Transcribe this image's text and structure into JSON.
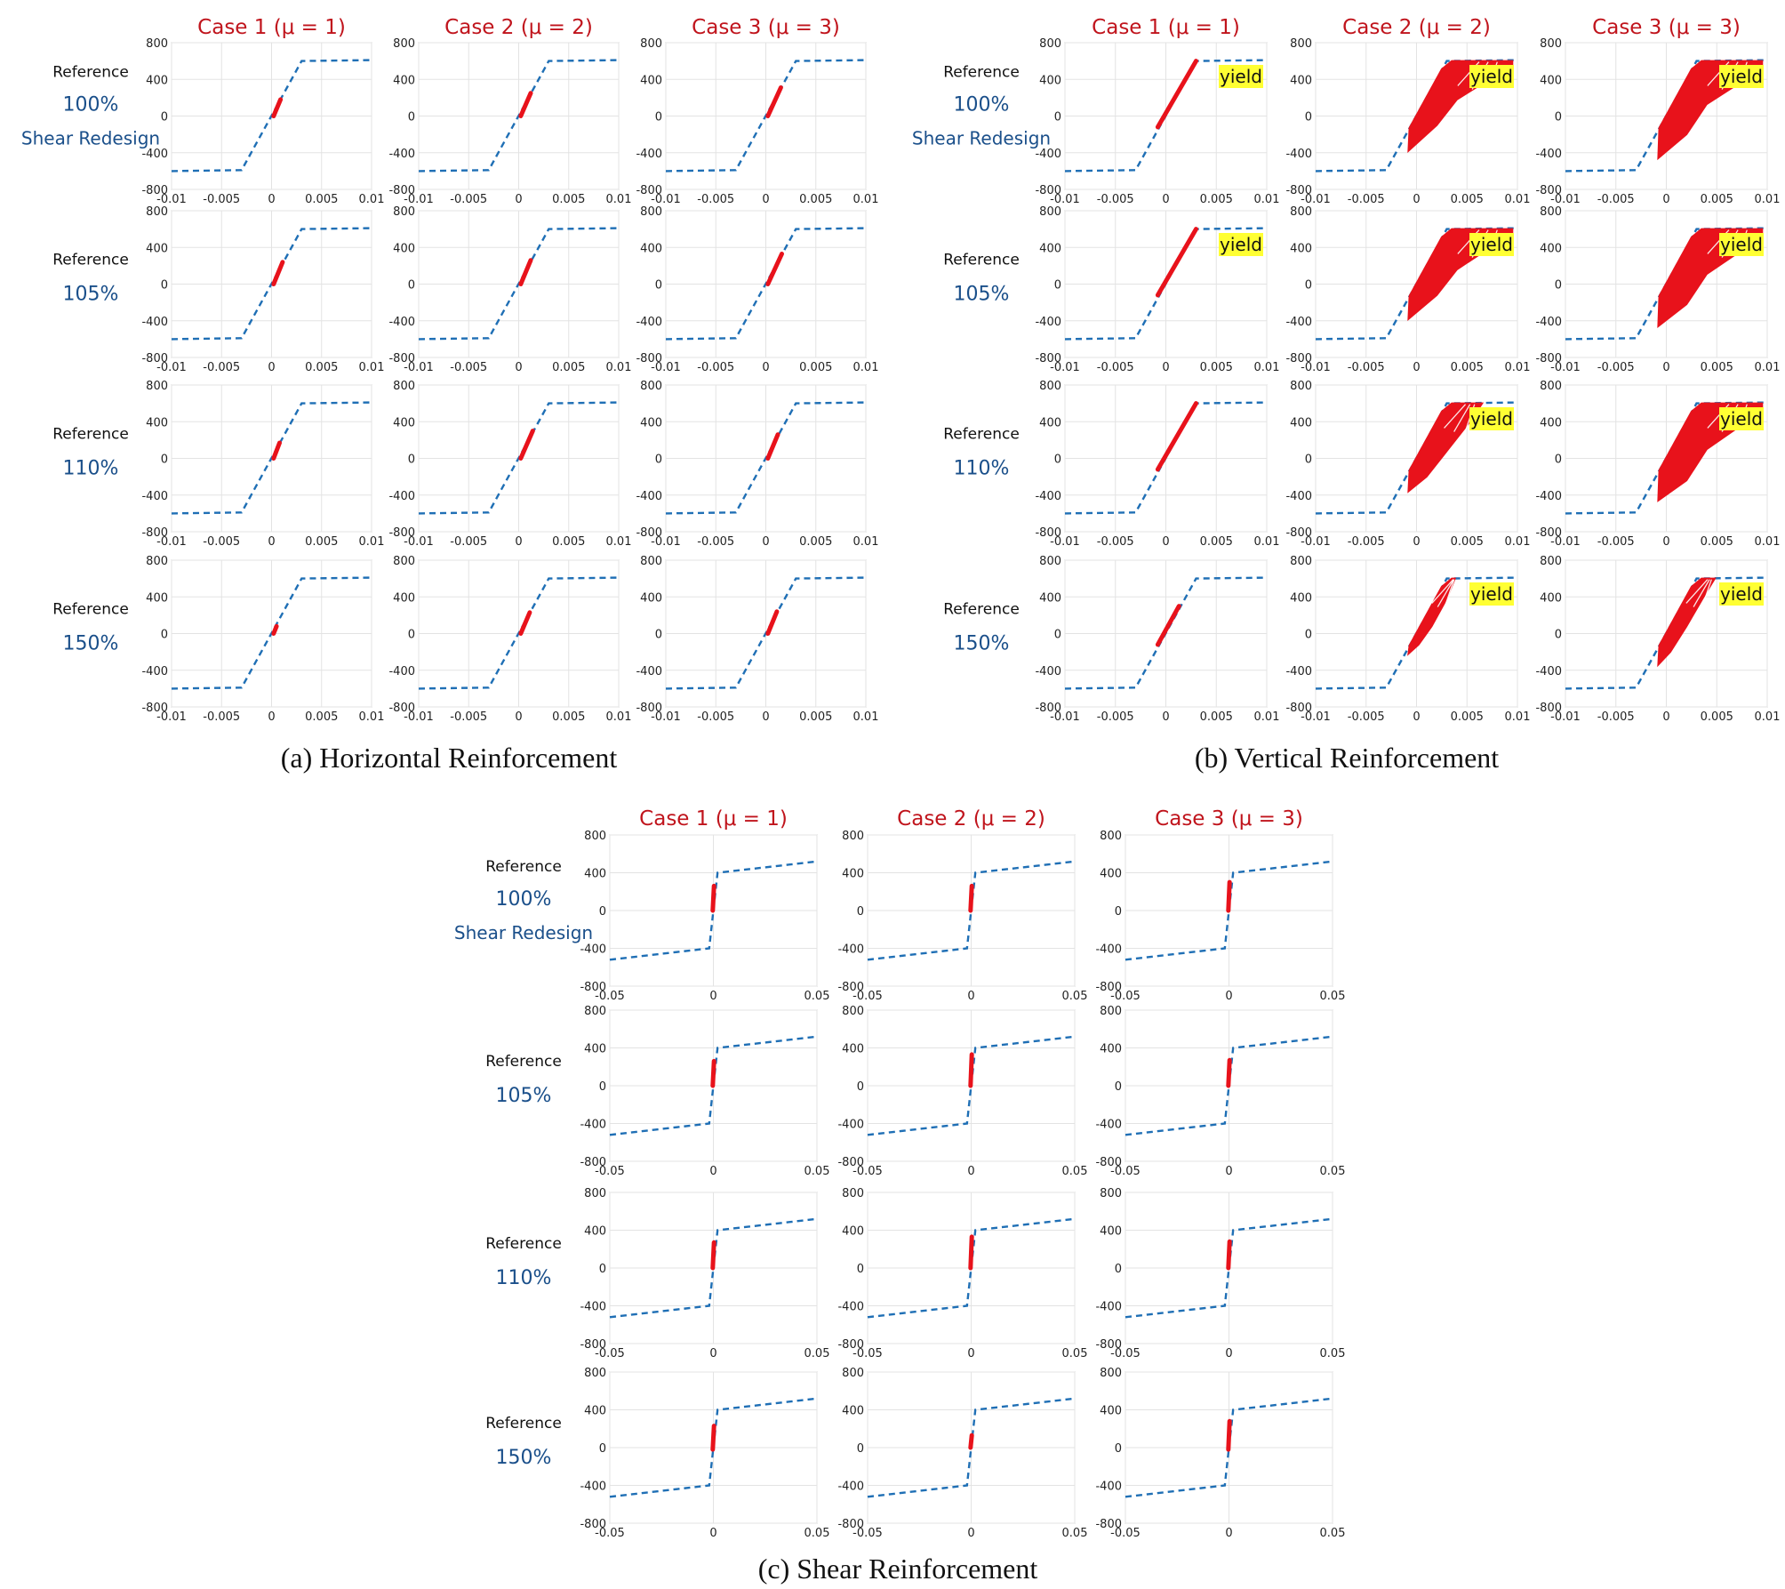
{
  "chart_data": {
    "type": "line",
    "case_headers": [
      "Case 1 (μ = 1)",
      "Case 2 (μ = 2)",
      "Case 3 (μ = 3)"
    ],
    "row_labels": [
      {
        "ref": "Reference",
        "pct": "100%",
        "redesign": "Shear Redesign"
      },
      {
        "ref": "Reference",
        "pct": "105%"
      },
      {
        "ref": "Reference",
        "pct": "110%"
      },
      {
        "ref": "Reference",
        "pct": "150%"
      }
    ],
    "yield_label": "yield",
    "colors": {
      "envelope": "#1f6fb5",
      "response": "#e8121b",
      "header": "#c0141c",
      "label": "#1a4f8a",
      "yield_bg": "#ffff33"
    },
    "panels": [
      {
        "id": "horizontal",
        "caption": "(a) Horizontal Reinforcement",
        "xlim": [
          -0.01,
          0.01
        ],
        "ylim": [
          -800,
          800
        ],
        "xticks": [
          -0.01,
          -0.005,
          0,
          0.005,
          0.01
        ],
        "xtick_labels": [
          "-0.01",
          "-0.005",
          "0",
          "0.005",
          "0.01"
        ],
        "yticks": [
          800,
          400,
          0,
          -400,
          -800
        ],
        "ytick_labels": [
          "800",
          "400",
          "0",
          "-400",
          "-800"
        ],
        "envelope": [
          [
            -0.01,
            -600
          ],
          [
            -0.003,
            -590
          ],
          [
            0.003,
            600
          ],
          [
            0.01,
            610
          ]
        ],
        "grid": [
          [
            {
              "response": [
                [
                  0.0002,
                  0
                ],
                [
                  0.0009,
                  180
                ]
              ]
            },
            {
              "response": [
                [
                  0.0002,
                  0
                ],
                [
                  0.0012,
                  250
                ]
              ]
            },
            {
              "response": [
                [
                  0.0002,
                  0
                ],
                [
                  0.0015,
                  310
                ]
              ]
            }
          ],
          [
            {
              "response": [
                [
                  0.0002,
                  0
                ],
                [
                  0.0011,
                  240
                ]
              ]
            },
            {
              "response": [
                [
                  0.0002,
                  0
                ],
                [
                  0.0012,
                  260
                ]
              ]
            },
            {
              "response": [
                [
                  0.0002,
                  0
                ],
                [
                  0.0016,
                  330
                ]
              ]
            }
          ],
          [
            {
              "response": [
                [
                  0.0002,
                  0
                ],
                [
                  0.0008,
                  170
                ]
              ]
            },
            {
              "response": [
                [
                  0.0002,
                  0
                ],
                [
                  0.0014,
                  300
                ]
              ]
            },
            {
              "response": [
                [
                  0.0002,
                  0
                ],
                [
                  0.0012,
                  260
                ]
              ]
            }
          ],
          [
            {
              "response": [
                [
                  0.0002,
                  0
                ],
                [
                  0.0005,
                  80
                ]
              ]
            },
            {
              "response": [
                [
                  0.0002,
                  0
                ],
                [
                  0.0011,
                  230
                ]
              ]
            },
            {
              "response": [
                [
                  0.0002,
                  0
                ],
                [
                  0.0011,
                  240
                ]
              ]
            }
          ]
        ]
      },
      {
        "id": "vertical",
        "caption": "(b) Vertical Reinforcement",
        "xlim": [
          -0.01,
          0.01
        ],
        "ylim": [
          -800,
          800
        ],
        "xticks": [
          -0.01,
          -0.005,
          0,
          0.005,
          0.01
        ],
        "xtick_labels": [
          "-0.01",
          "-0.005",
          "0",
          "0.005",
          "0.01"
        ],
        "yticks": [
          800,
          400,
          0,
          -400,
          -800
        ],
        "ytick_labels": [
          "800",
          "400",
          "0",
          "-400",
          "-800"
        ],
        "envelope": [
          [
            -0.01,
            -600
          ],
          [
            -0.003,
            -590
          ],
          [
            0.003,
            600
          ],
          [
            0.01,
            610
          ]
        ],
        "grid": [
          [
            {
              "response": [
                [
                  -0.0008,
                  -120
                ],
                [
                  0.003,
                  600
                ]
              ],
              "yield": true
            },
            {
              "fill": [
                [
                  -0.0008,
                  -380
                ],
                [
                  -0.0007,
                  -130
                ],
                [
                  0.0025,
                  510
                ],
                [
                  0.0035,
                  600
                ],
                [
                  0.0095,
                  600
                ],
                [
                  0.0095,
                  560
                ],
                [
                  0.004,
                  180
                ],
                [
                  0.002,
                  -100
                ]
              ],
              "yield": true
            },
            {
              "fill": [
                [
                  -0.0008,
                  -460
                ],
                [
                  -0.0007,
                  -130
                ],
                [
                  0.0025,
                  510
                ],
                [
                  0.0035,
                  600
                ],
                [
                  0.0095,
                  600
                ],
                [
                  0.0095,
                  520
                ],
                [
                  0.004,
                  130
                ],
                [
                  0.002,
                  -200
                ]
              ],
              "yield": true
            }
          ],
          [
            {
              "response": [
                [
                  -0.0008,
                  -120
                ],
                [
                  0.003,
                  600
                ]
              ],
              "yield": true
            },
            {
              "fill": [
                [
                  -0.0008,
                  -380
                ],
                [
                  -0.0007,
                  -130
                ],
                [
                  0.0025,
                  510
                ],
                [
                  0.0035,
                  600
                ],
                [
                  0.0095,
                  600
                ],
                [
                  0.0095,
                  560
                ],
                [
                  0.004,
                  160
                ],
                [
                  0.002,
                  -120
                ]
              ],
              "yield": true
            },
            {
              "fill": [
                [
                  -0.0008,
                  -460
                ],
                [
                  -0.0007,
                  -130
                ],
                [
                  0.0025,
                  510
                ],
                [
                  0.0035,
                  600
                ],
                [
                  0.0095,
                  600
                ],
                [
                  0.0095,
                  520
                ],
                [
                  0.004,
                  110
                ],
                [
                  0.002,
                  -220
                ]
              ],
              "yield": true
            }
          ],
          [
            {
              "response": [
                [
                  -0.0008,
                  -120
                ],
                [
                  0.003,
                  600
                ]
              ]
            },
            {
              "fill": [
                [
                  -0.0008,
                  -360
                ],
                [
                  -0.0007,
                  -130
                ],
                [
                  0.0025,
                  510
                ],
                [
                  0.0035,
                  600
                ],
                [
                  0.0065,
                  600
                ],
                [
                  0.0055,
                  430
                ],
                [
                  0.003,
                  80
                ],
                [
                  0.001,
                  -200
                ]
              ],
              "yield": true
            },
            {
              "fill": [
                [
                  -0.0008,
                  -460
                ],
                [
                  -0.0007,
                  -130
                ],
                [
                  0.0025,
                  510
                ],
                [
                  0.0035,
                  600
                ],
                [
                  0.0095,
                  600
                ],
                [
                  0.0095,
                  520
                ],
                [
                  0.004,
                  100
                ],
                [
                  0.002,
                  -240
                ]
              ],
              "yield": true
            }
          ],
          [
            {
              "response": [
                [
                  -0.0008,
                  -120
                ],
                [
                  0.0013,
                  300
                ]
              ]
            },
            {
              "fill": [
                [
                  -0.0008,
                  -220
                ],
                [
                  -0.0007,
                  -130
                ],
                [
                  0.0025,
                  510
                ],
                [
                  0.0035,
                  600
                ],
                [
                  0.0038,
                  600
                ],
                [
                  0.003,
                  380
                ],
                [
                  0.0015,
                  80
                ],
                [
                  0.0002,
                  -120
                ]
              ],
              "yield": true
            },
            {
              "fill": [
                [
                  -0.0008,
                  -340
                ],
                [
                  -0.0007,
                  -130
                ],
                [
                  0.0025,
                  510
                ],
                [
                  0.0035,
                  600
                ],
                [
                  0.0048,
                  600
                ],
                [
                  0.0038,
                  420
                ],
                [
                  0.002,
                  80
                ],
                [
                  0.0004,
                  -200
                ]
              ],
              "yield": true
            }
          ]
        ]
      },
      {
        "id": "shear",
        "caption": "(c) Shear Reinforcement",
        "xlim": [
          -0.05,
          0.05
        ],
        "ylim": [
          -800,
          800
        ],
        "xticks": [
          -0.05,
          0,
          0.05
        ],
        "xtick_labels": [
          "-0.05",
          "0",
          "0.05"
        ],
        "yticks": [
          800,
          400,
          0,
          -400,
          -800
        ],
        "ytick_labels": [
          "800",
          "400",
          "0",
          "-400",
          "-800"
        ],
        "envelope": [
          [
            -0.05,
            -520
          ],
          [
            -0.002,
            -400
          ],
          [
            0.002,
            400
          ],
          [
            0.05,
            520
          ]
        ],
        "grid": [
          [
            {
              "response": [
                [
                  -0.0003,
                  0
                ],
                [
                  0.0003,
                  260
                ]
              ]
            },
            {
              "response": [
                [
                  -0.0003,
                  0
                ],
                [
                  0.0003,
                  260
                ]
              ]
            },
            {
              "response": [
                [
                  -0.0003,
                  0
                ],
                [
                  0.0003,
                  300
                ]
              ]
            }
          ],
          [
            {
              "response": [
                [
                  -0.0003,
                  0
                ],
                [
                  0.0003,
                  260
                ]
              ]
            },
            {
              "response": [
                [
                  -0.0003,
                  0
                ],
                [
                  0.0003,
                  330
                ]
              ]
            },
            {
              "response": [
                [
                  -0.0003,
                  0
                ],
                [
                  0.0003,
                  270
                ]
              ]
            }
          ],
          [
            {
              "response": [
                [
                  -0.0003,
                  0
                ],
                [
                  0.0003,
                  270
                ]
              ]
            },
            {
              "response": [
                [
                  -0.0003,
                  0
                ],
                [
                  0.0003,
                  330
                ]
              ]
            },
            {
              "response": [
                [
                  -0.0003,
                  0
                ],
                [
                  0.0003,
                  280
                ]
              ]
            }
          ],
          [
            {
              "response": [
                [
                  -0.0003,
                  -20
                ],
                [
                  0.0003,
                  230
                ]
              ]
            },
            {
              "response": [
                [
                  -0.0003,
                  0
                ],
                [
                  0.0003,
                  130
                ]
              ]
            },
            {
              "response": [
                [
                  -0.0003,
                  -20
                ],
                [
                  0.0003,
                  280
                ]
              ]
            }
          ]
        ]
      }
    ]
  }
}
